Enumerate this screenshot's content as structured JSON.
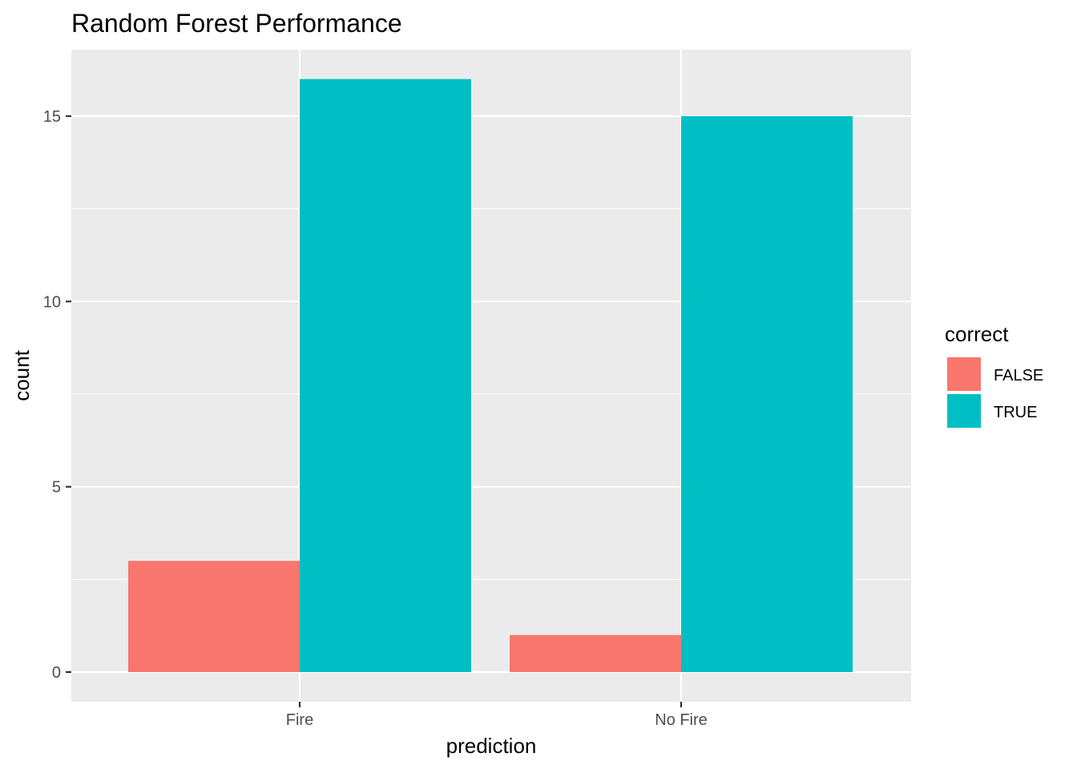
{
  "chart_data": {
    "type": "bar",
    "title": "Random Forest Performance",
    "xlabel": "prediction",
    "ylabel": "count",
    "categories": [
      "Fire",
      "No Fire"
    ],
    "series": [
      {
        "name": "FALSE",
        "values": [
          3,
          1
        ],
        "color": "#F8766D"
      },
      {
        "name": "TRUE",
        "values": [
          16,
          15
        ],
        "color": "#00BFC4"
      }
    ],
    "ylim": [
      0,
      16.8
    ],
    "yticks": [
      "0",
      "5",
      "10",
      "15"
    ],
    "ytick_values": [
      0,
      5,
      10,
      15
    ],
    "yminor_values": [
      2.5,
      7.5,
      12.5
    ],
    "legend_title": "correct",
    "legend_position": "right",
    "grid": true,
    "panel_background": "#EBEBEB",
    "gridline_color": "#FFFFFF"
  }
}
